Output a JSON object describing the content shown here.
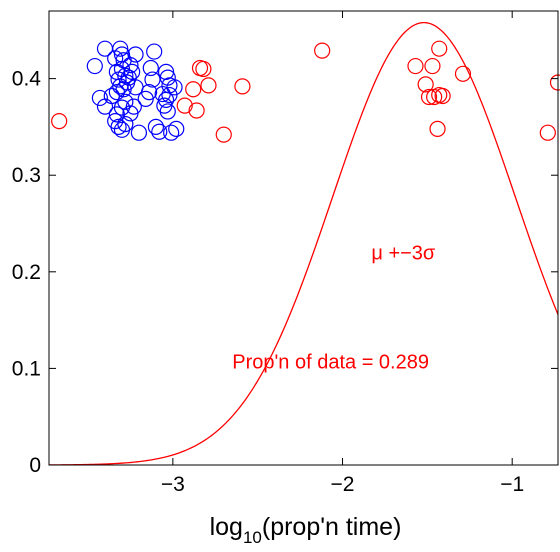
{
  "chart_data": {
    "type": "scatter",
    "title": "",
    "xlabel_base": "log",
    "xlabel_sub": "10",
    "xlabel_rest": "(prop'n time)",
    "xlim": [
      -3.73,
      -0.73
    ],
    "ylim": [
      0,
      0.47
    ],
    "xticks": [
      -3,
      -2,
      -1
    ],
    "xtick_labels": [
      "−3",
      "−2",
      "−1"
    ],
    "yticks": [
      0,
      0.1,
      0.2,
      0.3,
      0.4
    ],
    "ytick_labels": [
      "0",
      "0.1",
      "0.2",
      "0.3",
      "0.4"
    ],
    "colors": {
      "blue": "#0000ff",
      "red": "#ff0000",
      "axis": "#000000"
    },
    "series": [
      {
        "color": "blue",
        "points": [
          [
            -3.46,
            0.413
          ],
          [
            -3.4,
            0.431
          ],
          [
            -3.43,
            0.38
          ],
          [
            -3.4,
            0.371
          ],
          [
            -3.36,
            0.382
          ],
          [
            -3.34,
            0.421
          ],
          [
            -3.31,
            0.431
          ],
          [
            -3.3,
            0.425
          ],
          [
            -3.29,
            0.419
          ],
          [
            -3.33,
            0.407
          ],
          [
            -3.32,
            0.399
          ],
          [
            -3.31,
            0.392
          ],
          [
            -3.33,
            0.386
          ],
          [
            -3.3,
            0.41
          ],
          [
            -3.28,
            0.403
          ],
          [
            -3.27,
            0.396
          ],
          [
            -3.29,
            0.389
          ],
          [
            -3.26,
            0.401
          ],
          [
            -3.25,
            0.414
          ],
          [
            -3.24,
            0.407
          ],
          [
            -3.22,
            0.425
          ],
          [
            -3.22,
            0.391
          ],
          [
            -3.3,
            0.37
          ],
          [
            -3.28,
            0.376
          ],
          [
            -3.33,
            0.363
          ],
          [
            -3.34,
            0.356
          ],
          [
            -3.32,
            0.35
          ],
          [
            -3.3,
            0.347
          ],
          [
            -3.28,
            0.353
          ],
          [
            -3.25,
            0.364
          ],
          [
            -3.23,
            0.371
          ],
          [
            -3.2,
            0.344
          ],
          [
            -3.16,
            0.379
          ],
          [
            -3.14,
            0.386
          ],
          [
            -3.12,
            0.399
          ],
          [
            -3.11,
            0.428
          ],
          [
            -3.1,
            0.35
          ],
          [
            -3.08,
            0.345
          ],
          [
            -3.13,
            0.411
          ],
          [
            -3.05,
            0.372
          ],
          [
            -3.04,
            0.378
          ],
          [
            -3.03,
            0.366
          ],
          [
            -3.02,
            0.393
          ],
          [
            -3.03,
            0.401
          ],
          [
            -3.02,
            0.383
          ],
          [
            -2.99,
            0.391
          ],
          [
            -2.98,
            0.348
          ],
          [
            -3.01,
            0.344
          ],
          [
            -3.04,
            0.407
          ],
          [
            -3.06,
            0.384
          ]
        ]
      },
      {
        "color": "red",
        "points": [
          [
            -3.67,
            0.356
          ],
          [
            -2.93,
            0.372
          ],
          [
            -2.88,
            0.389
          ],
          [
            -2.84,
            0.411
          ],
          [
            -2.82,
            0.41
          ],
          [
            -2.79,
            0.393
          ],
          [
            -2.86,
            0.367
          ],
          [
            -2.7,
            0.342
          ],
          [
            -2.59,
            0.392
          ],
          [
            -2.12,
            0.429
          ],
          [
            -1.57,
            0.413
          ],
          [
            -1.51,
            0.394
          ],
          [
            -1.49,
            0.381
          ],
          [
            -1.46,
            0.381
          ],
          [
            -1.43,
            0.383
          ],
          [
            -1.41,
            0.382
          ],
          [
            -1.47,
            0.413
          ],
          [
            -1.43,
            0.431
          ],
          [
            -1.44,
            0.348
          ],
          [
            -1.29,
            0.405
          ],
          [
            -0.79,
            0.344
          ],
          [
            -0.73,
            0.396
          ]
        ]
      }
    ],
    "curve": {
      "color": "red",
      "mu": -1.52,
      "sigma": 0.538,
      "peak": 0.458,
      "x_start": -3.73,
      "x_end": -0.73
    },
    "annotations": [
      {
        "text": "μ +−3σ",
        "x": -1.83,
        "y": 0.213,
        "color": "red"
      },
      {
        "text": "Prop'n of data = 0.289",
        "x": -2.65,
        "y": 0.1,
        "color": "red"
      }
    ]
  }
}
